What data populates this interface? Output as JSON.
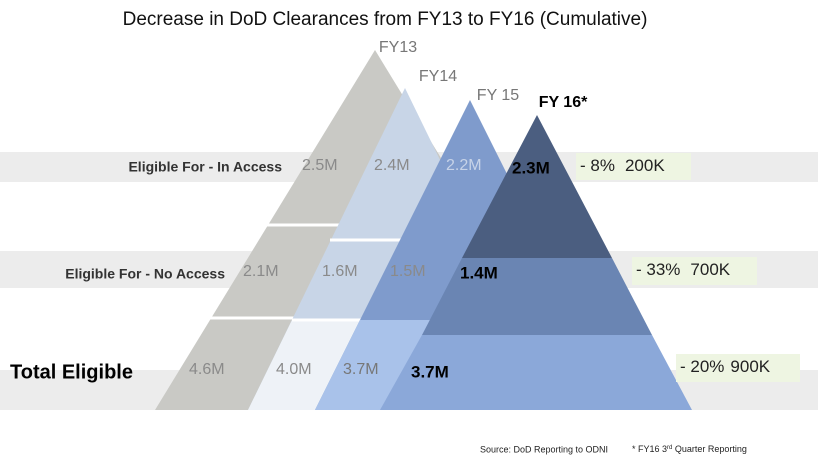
{
  "title": "Decrease in DoD Clearances from FY13 to FY16 (Cumulative)",
  "pyramids": [
    "FY13",
    "FY14",
    "FY 15",
    "FY 16*"
  ],
  "rows": [
    {
      "label": "Eligible For - In Access",
      "values": [
        "2.5M",
        "2.4M",
        "2.2M",
        "2.3M"
      ],
      "change": "- 8%",
      "amount": "200K"
    },
    {
      "label": "Eligible For - No Access",
      "values": [
        "2.1M",
        "1.6M",
        "1.5M",
        "1.4M"
      ],
      "change": "- 33%",
      "amount": "700K"
    },
    {
      "label": "Total Eligible",
      "values": [
        "4.6M",
        "4.0M",
        "3.7M",
        "3.7M"
      ],
      "change": "- 20%",
      "amount": "900K"
    }
  ],
  "source": "Source:  DoD Reporting to ODNI",
  "footnote": {
    "prefix": "* FY16 3",
    "sup": "rd",
    "suffix": "  Quarter Reporting"
  }
}
